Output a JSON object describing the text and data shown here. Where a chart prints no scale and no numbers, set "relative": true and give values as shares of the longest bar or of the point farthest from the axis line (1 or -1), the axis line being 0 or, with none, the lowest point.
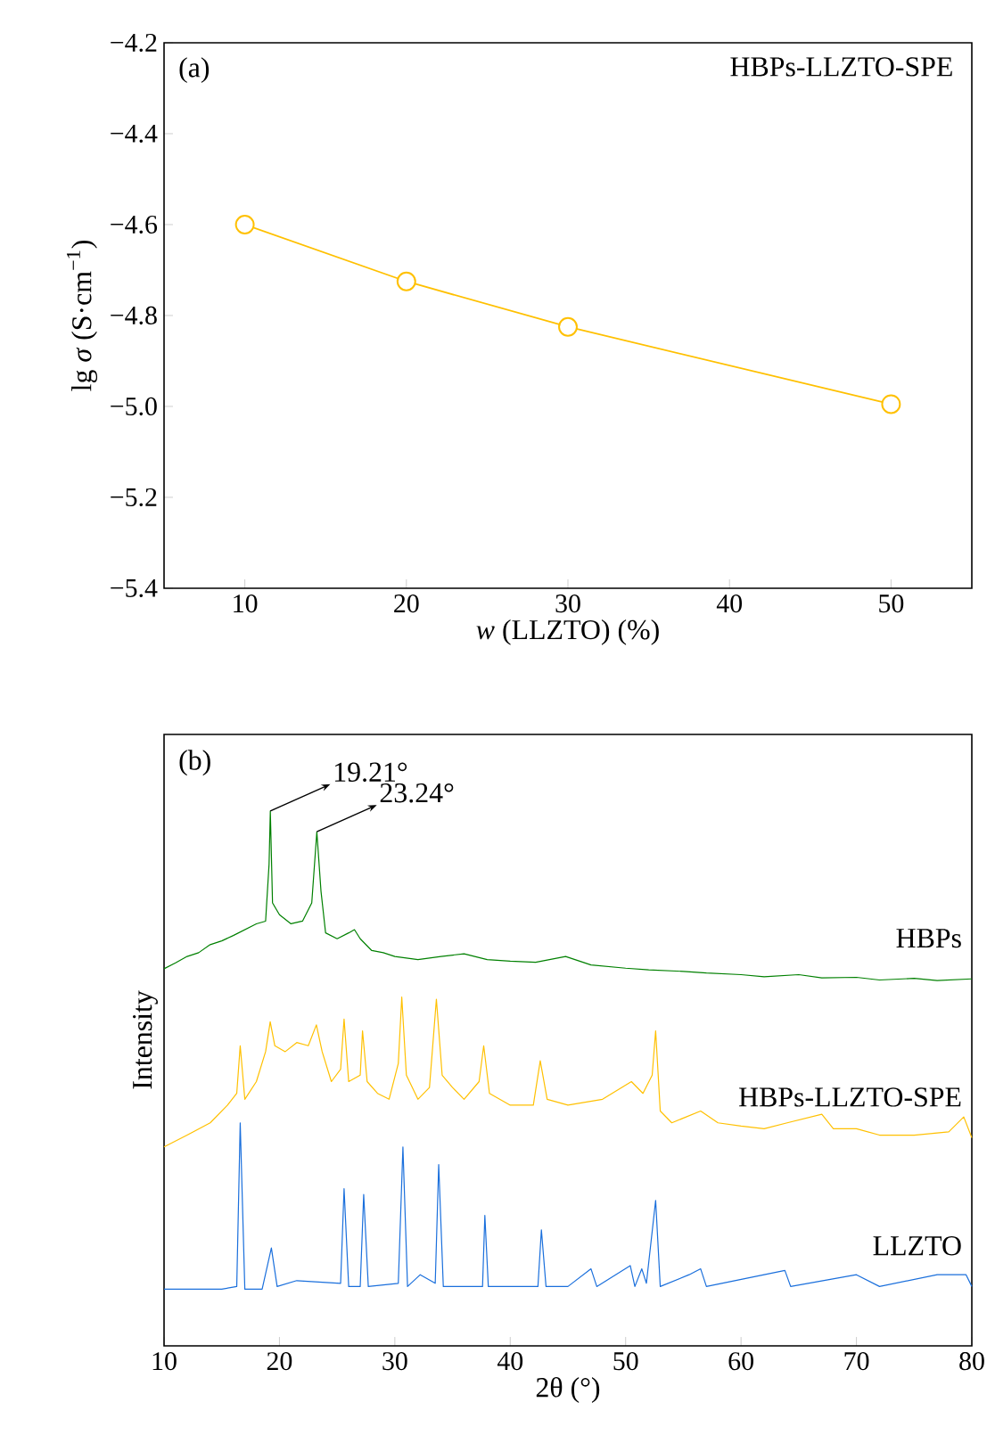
{
  "chart_data": [
    {
      "type": "line",
      "x": [
        10,
        20,
        30,
        50
      ],
      "values": [
        -4.6,
        -4.725,
        -4.825,
        -4.995
      ],
      "color": "#ffc000",
      "marker": "circle",
      "xlim": [
        5,
        55
      ],
      "ylim": [
        -5.4,
        -4.2
      ],
      "xticks": [
        10,
        20,
        30,
        40,
        50
      ],
      "yticks": [
        {
          "value": -4.2,
          "label": "−4.2"
        },
        {
          "value": -4.4,
          "label": "−4.4"
        },
        {
          "value": -4.6,
          "label": "−4.6"
        },
        {
          "value": -4.8,
          "label": "−4.8"
        },
        {
          "value": -5.0,
          "label": "−5.0"
        },
        {
          "value": -5.2,
          "label": "−5.2"
        },
        {
          "value": -5.4,
          "label": "−5.4"
        }
      ],
      "xlabel": "*w* (LLZTO) (%)",
      "ylabel": "lg *σ* (S·cm$^{−1}$)",
      "annotations": [
        "(a)",
        "HBPs-LLZTO-SPE"
      ]
    },
    {
      "type": "line",
      "relative": true,
      "xlim": [
        10,
        80
      ],
      "xticks": [
        10,
        20,
        30,
        40,
        50,
        60,
        70,
        80
      ],
      "xlabel": "2θ (°)",
      "ylabel": "Intensity",
      "annotations": [
        "(b)",
        {
          "text": "19.21°",
          "x": 19.21,
          "y": 1.0
        },
        {
          "text": "23.24°",
          "x": 23.24,
          "y": 0.961
        }
      ],
      "series": [
        {
          "name": "HBPs",
          "color": "#008000",
          "x": [
            10,
            11,
            12,
            13,
            14,
            15,
            16,
            17,
            18,
            18.8,
            19.1,
            19.21,
            19.4,
            20,
            21,
            22,
            22.8,
            23.24,
            23.6,
            24,
            25,
            26,
            26.5,
            27,
            28,
            29,
            30,
            31,
            32,
            34,
            36,
            38,
            40,
            42.2,
            44.8,
            47,
            50,
            52,
            55,
            57,
            60,
            62,
            65,
            67,
            70,
            72,
            75,
            77,
            80
          ],
          "values": [
            0.705,
            0.716,
            0.728,
            0.735,
            0.75,
            0.757,
            0.767,
            0.778,
            0.789,
            0.794,
            0.9,
            1.0,
            0.828,
            0.806,
            0.789,
            0.794,
            0.828,
            0.961,
            0.85,
            0.772,
            0.761,
            0.772,
            0.778,
            0.761,
            0.739,
            0.735,
            0.728,
            0.725,
            0.722,
            0.728,
            0.733,
            0.722,
            0.719,
            0.717,
            0.728,
            0.712,
            0.706,
            0.703,
            0.7,
            0.697,
            0.694,
            0.69,
            0.694,
            0.688,
            0.689,
            0.684,
            0.687,
            0.683,
            0.686
          ]
        },
        {
          "name": "HBPs-LLZTO-SPE",
          "color": "#ffc000",
          "x": [
            10,
            12,
            14,
            15.5,
            16.3,
            16.6,
            17.0,
            18,
            18.8,
            19.2,
            19.6,
            20.5,
            21.5,
            22.5,
            23.2,
            23.7,
            24.5,
            25.3,
            25.6,
            26,
            27,
            27.2,
            27.6,
            28.5,
            29.5,
            30.3,
            30.6,
            31.0,
            32,
            33,
            33.6,
            34.1,
            35,
            36,
            37.3,
            37.7,
            38.2,
            40,
            42,
            42.6,
            43.2,
            45,
            48,
            50.5,
            51.5,
            52.3,
            52.6,
            53,
            54,
            56.5,
            58,
            60,
            62,
            64,
            67,
            68,
            70,
            72,
            75,
            78,
            79.3,
            80
          ],
          "values": [
            0.372,
            0.394,
            0.417,
            0.45,
            0.472,
            0.561,
            0.461,
            0.494,
            0.55,
            0.606,
            0.561,
            0.55,
            0.567,
            0.561,
            0.6,
            0.55,
            0.494,
            0.517,
            0.611,
            0.494,
            0.506,
            0.589,
            0.494,
            0.472,
            0.461,
            0.528,
            0.652,
            0.506,
            0.461,
            0.483,
            0.648,
            0.506,
            0.483,
            0.461,
            0.494,
            0.561,
            0.472,
            0.45,
            0.45,
            0.533,
            0.461,
            0.45,
            0.461,
            0.494,
            0.472,
            0.506,
            0.589,
            0.439,
            0.417,
            0.439,
            0.417,
            0.411,
            0.406,
            0.417,
            0.433,
            0.406,
            0.406,
            0.394,
            0.394,
            0.4,
            0.428,
            0.389
          ]
        },
        {
          "name": "LLZTO",
          "color": "#1a6fdc",
          "x": [
            10,
            15,
            16.3,
            16.6,
            17.0,
            18.5,
            19.3,
            19.8,
            21.5,
            25.3,
            25.6,
            26.0,
            27.0,
            27.3,
            27.7,
            30.3,
            30.7,
            31.1,
            32.2,
            33.5,
            33.8,
            34.2,
            37.6,
            37.8,
            38.1,
            42.4,
            42.7,
            43.1,
            45,
            47,
            47.5,
            50.4,
            50.8,
            51.4,
            51.8,
            52.6,
            53.0,
            55.5,
            56.5,
            57,
            63.8,
            64.3,
            70,
            72,
            77,
            79.5,
            80
          ],
          "values": [
            0.106,
            0.106,
            0.111,
            0.417,
            0.106,
            0.106,
            0.183,
            0.111,
            0.122,
            0.117,
            0.294,
            0.111,
            0.111,
            0.283,
            0.111,
            0.117,
            0.372,
            0.111,
            0.133,
            0.117,
            0.339,
            0.111,
            0.111,
            0.244,
            0.111,
            0.111,
            0.217,
            0.111,
            0.111,
            0.144,
            0.111,
            0.15,
            0.111,
            0.144,
            0.117,
            0.272,
            0.111,
            0.133,
            0.144,
            0.111,
            0.141,
            0.111,
            0.133,
            0.111,
            0.133,
            0.133,
            0.111
          ]
        }
      ]
    }
  ]
}
